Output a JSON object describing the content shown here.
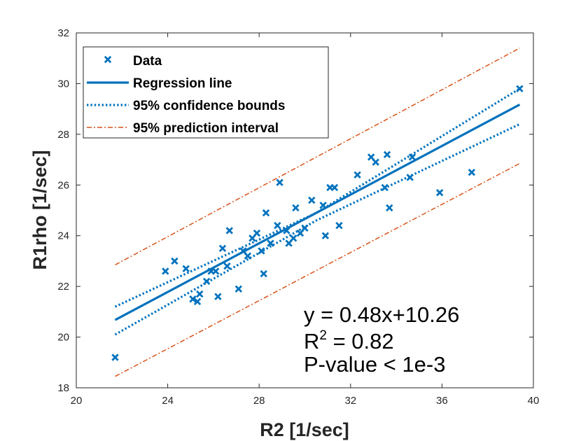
{
  "chart_data": {
    "type": "scatter",
    "xlabel": "R2 [1/sec]",
    "ylabel": "R1rho [1/sec]",
    "xlim": [
      20,
      40
    ],
    "ylim": [
      18,
      32
    ],
    "xticks": [
      20,
      24,
      28,
      32,
      36,
      40
    ],
    "yticks": [
      18,
      20,
      22,
      24,
      26,
      28,
      30,
      32
    ],
    "grid": false,
    "legend_position": "top-left",
    "legend": [
      {
        "key": "data",
        "label": "Data"
      },
      {
        "key": "regression",
        "label": "Regression line"
      },
      {
        "key": "confidence",
        "label": "95% confidence bounds"
      },
      {
        "key": "prediction",
        "label": "95% prediction interval"
      }
    ],
    "regression": {
      "slope": 0.48,
      "intercept": 10.26,
      "x_range": [
        21.7,
        39.4
      ]
    },
    "confidence_bounds": {
      "upper": {
        "x": [
          21.7,
          30.5,
          39.4
        ],
        "y": [
          21.2,
          24.9,
          29.8
        ]
      },
      "lower": {
        "x": [
          21.7,
          30.5,
          39.4
        ],
        "y": [
          20.1,
          24.6,
          28.4
        ]
      }
    },
    "prediction_interval": {
      "upper": {
        "x": [
          21.7,
          39.4
        ],
        "y": [
          22.85,
          31.4
        ]
      },
      "lower": {
        "x": [
          21.7,
          39.4
        ],
        "y": [
          18.45,
          26.85
        ]
      }
    },
    "points": [
      {
        "x": 21.7,
        "y": 19.2
      },
      {
        "x": 23.9,
        "y": 22.6
      },
      {
        "x": 24.3,
        "y": 23.0
      },
      {
        "x": 24.8,
        "y": 22.7
      },
      {
        "x": 25.1,
        "y": 21.5
      },
      {
        "x": 25.3,
        "y": 21.4
      },
      {
        "x": 25.4,
        "y": 21.7
      },
      {
        "x": 25.7,
        "y": 22.2
      },
      {
        "x": 25.9,
        "y": 22.6
      },
      {
        "x": 26.1,
        "y": 22.6
      },
      {
        "x": 26.2,
        "y": 21.6
      },
      {
        "x": 26.4,
        "y": 23.5
      },
      {
        "x": 26.6,
        "y": 22.8
      },
      {
        "x": 26.7,
        "y": 24.2
      },
      {
        "x": 27.1,
        "y": 21.9
      },
      {
        "x": 27.3,
        "y": 23.4
      },
      {
        "x": 27.5,
        "y": 23.2
      },
      {
        "x": 27.7,
        "y": 23.9
      },
      {
        "x": 27.9,
        "y": 24.1
      },
      {
        "x": 28.1,
        "y": 23.4
      },
      {
        "x": 28.2,
        "y": 22.5
      },
      {
        "x": 28.3,
        "y": 24.9
      },
      {
        "x": 28.5,
        "y": 23.7
      },
      {
        "x": 28.8,
        "y": 24.4
      },
      {
        "x": 28.9,
        "y": 26.1
      },
      {
        "x": 29.2,
        "y": 24.2
      },
      {
        "x": 29.3,
        "y": 23.7
      },
      {
        "x": 29.5,
        "y": 23.9
      },
      {
        "x": 29.6,
        "y": 25.1
      },
      {
        "x": 29.8,
        "y": 24.1
      },
      {
        "x": 30.0,
        "y": 24.3
      },
      {
        "x": 30.3,
        "y": 25.4
      },
      {
        "x": 30.8,
        "y": 25.2
      },
      {
        "x": 30.9,
        "y": 24.0
      },
      {
        "x": 31.1,
        "y": 25.9
      },
      {
        "x": 31.3,
        "y": 25.9
      },
      {
        "x": 31.5,
        "y": 24.4
      },
      {
        "x": 32.3,
        "y": 26.4
      },
      {
        "x": 32.9,
        "y": 27.1
      },
      {
        "x": 33.1,
        "y": 26.9
      },
      {
        "x": 33.5,
        "y": 25.9
      },
      {
        "x": 33.6,
        "y": 27.2
      },
      {
        "x": 33.7,
        "y": 25.1
      },
      {
        "x": 34.6,
        "y": 26.3
      },
      {
        "x": 34.7,
        "y": 27.1
      },
      {
        "x": 35.9,
        "y": 25.7
      },
      {
        "x": 37.3,
        "y": 26.5
      },
      {
        "x": 39.4,
        "y": 29.8
      }
    ],
    "annotations": {
      "equation": "y = 0.48x+10.26",
      "r2_prefix": "R",
      "r2_superscript": "2",
      "r2_value": " = 0.82",
      "pvalue": "P-value < 1e-3"
    }
  },
  "colors": {
    "data": "#0072BD",
    "prediction": "#D95319",
    "axis": "#262626"
  }
}
